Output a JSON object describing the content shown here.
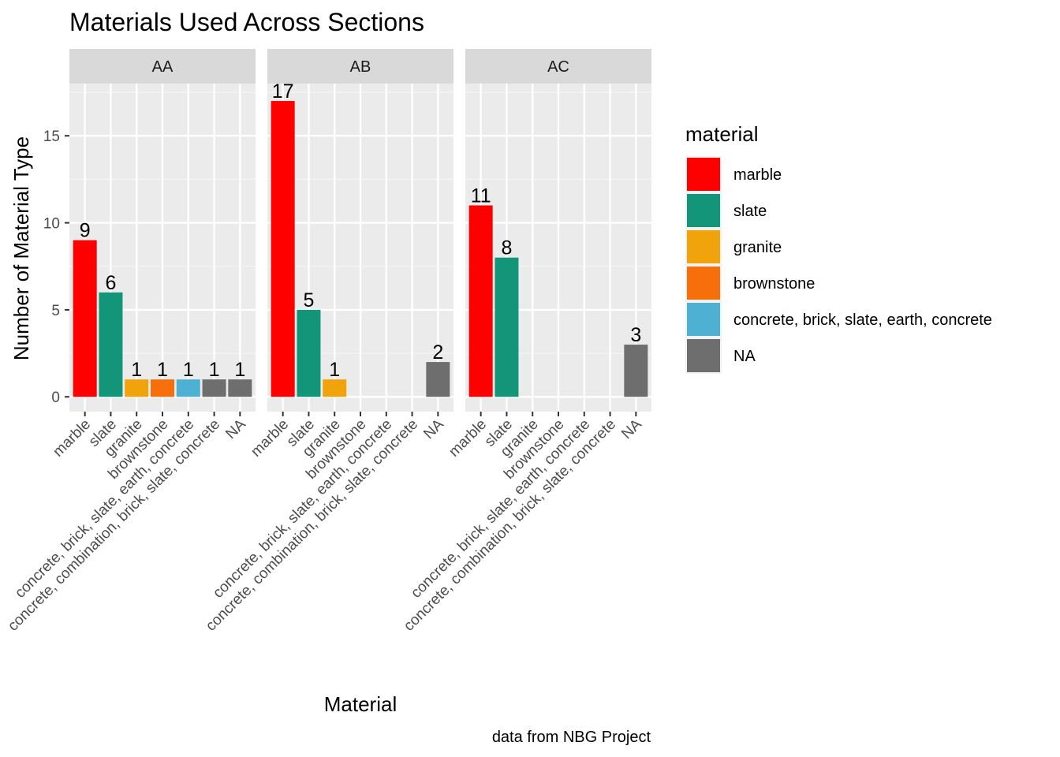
{
  "chart_data": {
    "type": "bar",
    "title": "Materials Used Across Sections",
    "xlabel": "Material",
    "ylabel": "Number of Material Type",
    "caption": "data from NBG Project",
    "ylim": [
      0,
      18
    ],
    "yticks": [
      0,
      5,
      10,
      15
    ],
    "grid": true,
    "legend": {
      "title": "material",
      "placement": "right"
    },
    "categories": [
      "marble",
      "slate",
      "granite",
      "brownstone",
      "concrete, brick, slate, earth, concrete",
      "concrete, combination, brick, slate, concrete",
      "NA"
    ],
    "legend_entries": [
      {
        "label": "marble",
        "color": "#FF0000"
      },
      {
        "label": "slate",
        "color": "#139579"
      },
      {
        "label": "granite",
        "color": "#F0A30A"
      },
      {
        "label": "brownstone",
        "color": "#F76F0A"
      },
      {
        "label": "concrete, brick, slate, earth, concrete",
        "color": "#4EB0D3"
      },
      {
        "label": "NA",
        "color": "#6E6E6E"
      }
    ],
    "bar_colors": [
      "#FF0000",
      "#139579",
      "#F0A30A",
      "#F76F0A",
      "#4EB0D3",
      "#6E6E6E",
      "#6E6E6E"
    ],
    "panels": [
      {
        "name": "AA",
        "values": [
          9,
          6,
          1,
          1,
          1,
          1,
          1
        ]
      },
      {
        "name": "AB",
        "values": [
          17,
          5,
          1,
          null,
          null,
          null,
          2
        ]
      },
      {
        "name": "AC",
        "values": [
          11,
          8,
          null,
          null,
          null,
          null,
          3
        ]
      }
    ]
  }
}
